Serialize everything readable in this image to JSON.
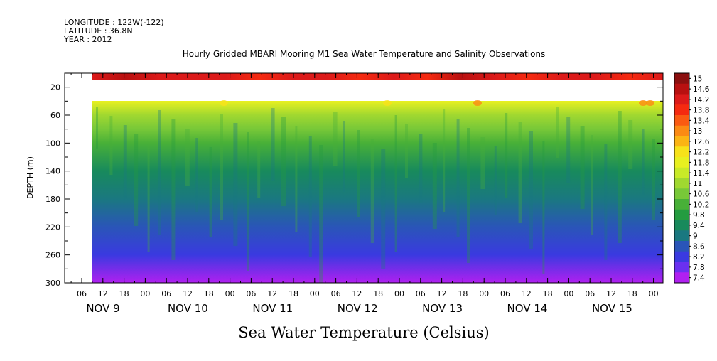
{
  "meta": {
    "longitude": "LONGITUDE : 122W(-122)",
    "latitude": "LATITUDE : 36.8N",
    "year": "YEAR : 2012"
  },
  "chart_data": {
    "type": "heatmap",
    "title": "Hourly Gridded MBARI Mooring M1 Sea Water Temperature and Salinity Observations",
    "xlabel": "Sea Water Temperature (Celsius)",
    "ylabel": "DEPTH (m)",
    "y_ticks": [
      "20",
      "60",
      "100",
      "140",
      "180",
      "220",
      "260",
      "300"
    ],
    "y_axis_inverted": true,
    "hour_ticks": [
      "06",
      "12",
      "18",
      "00",
      "06",
      "12",
      "18",
      "00",
      "06",
      "12",
      "18",
      "00",
      "06",
      "12",
      "18",
      "00",
      "06",
      "12",
      "18",
      "00",
      "06",
      "12",
      "18",
      "00",
      "06",
      "12",
      "18",
      "00"
    ],
    "day_labels": [
      "NOV  9",
      "NOV 10",
      "NOV 11",
      "NOV 12",
      "NOV 13",
      "NOV 14",
      "NOV 15"
    ],
    "colorbar_levels": [
      "15",
      "14.6",
      "14.2",
      "13.8",
      "13.4",
      "13",
      "12.6",
      "12.2",
      "11.8",
      "11.4",
      "11",
      "10.6",
      "10.2",
      "9.8",
      "9.4",
      "9",
      "8.6",
      "8.2",
      "7.8",
      "7.4"
    ],
    "colorbar_colors": [
      "#8b0f0f",
      "#b81010",
      "#dc1a1a",
      "#f52a10",
      "#fa5a12",
      "#fb8a14",
      "#fbb414",
      "#f7e21a",
      "#e8f020",
      "#c8ea28",
      "#a0d830",
      "#78c838",
      "#48b038",
      "#249c40",
      "#188a5c",
      "#1a7880",
      "#2a55b8",
      "#3a3ae0",
      "#6a30f0",
      "#b020f0"
    ],
    "zones": [
      {
        "depth": "10",
        "temp": 14.3
      },
      {
        "depth": "20-35",
        "temp": null,
        "note": "no data"
      },
      {
        "depth": "40",
        "temp": 12.0
      },
      {
        "depth": "60",
        "temp": 11.2
      },
      {
        "depth": "80",
        "temp": 10.6
      },
      {
        "depth": "100",
        "temp": 10.2
      },
      {
        "depth": "140",
        "temp": 9.6
      },
      {
        "depth": "180",
        "temp": 9.1
      },
      {
        "depth": "220",
        "temp": 8.6
      },
      {
        "depth": "260",
        "temp": 8.2
      },
      {
        "depth": "300",
        "temp": 7.6
      }
    ],
    "colorbar_range": [
      7.4,
      15.2
    ],
    "grid": false
  }
}
